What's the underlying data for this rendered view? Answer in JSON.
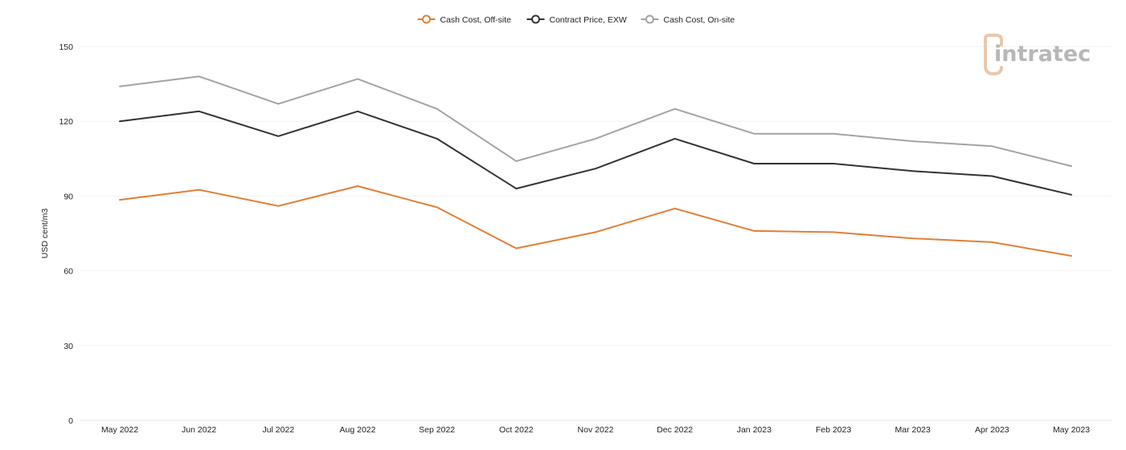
{
  "chart_data": {
    "type": "line",
    "categories": [
      "May 2022",
      "Jun 2022",
      "Jul 2022",
      "Aug 2022",
      "Sep 2022",
      "Oct 2022",
      "Nov 2022",
      "Dec 2022",
      "Jan 2023",
      "Feb 2023",
      "Mar 2023",
      "Apr 2023",
      "May 2023"
    ],
    "series": [
      {
        "name": "Cash Cost, Off-site",
        "color": "#e07f37",
        "values": [
          88.5,
          92.5,
          86,
          94,
          85.5,
          69,
          75.5,
          85,
          76,
          75.5,
          73,
          71.5,
          66
        ]
      },
      {
        "name": "Contract Price, EXW",
        "color": "#333333",
        "values": [
          120,
          124,
          114,
          124,
          113,
          93,
          101,
          113,
          103,
          103,
          100,
          98,
          90.5
        ]
      },
      {
        "name": "Cash Cost, On-site",
        "color": "#a3a3a3",
        "values": [
          134,
          138,
          127,
          137,
          125,
          104,
          113,
          125,
          115,
          115,
          112,
          110,
          102
        ]
      }
    ],
    "ylabel": "USD cent/m3",
    "xlabel": "",
    "ylim": [
      0,
      150
    ],
    "yticks": [
      "0",
      "30",
      "60",
      "90",
      "120",
      "150"
    ],
    "grid": true,
    "legend_position": "top-center"
  },
  "logo": {
    "text": "intratec",
    "icon": "intratec-logo-icon"
  }
}
